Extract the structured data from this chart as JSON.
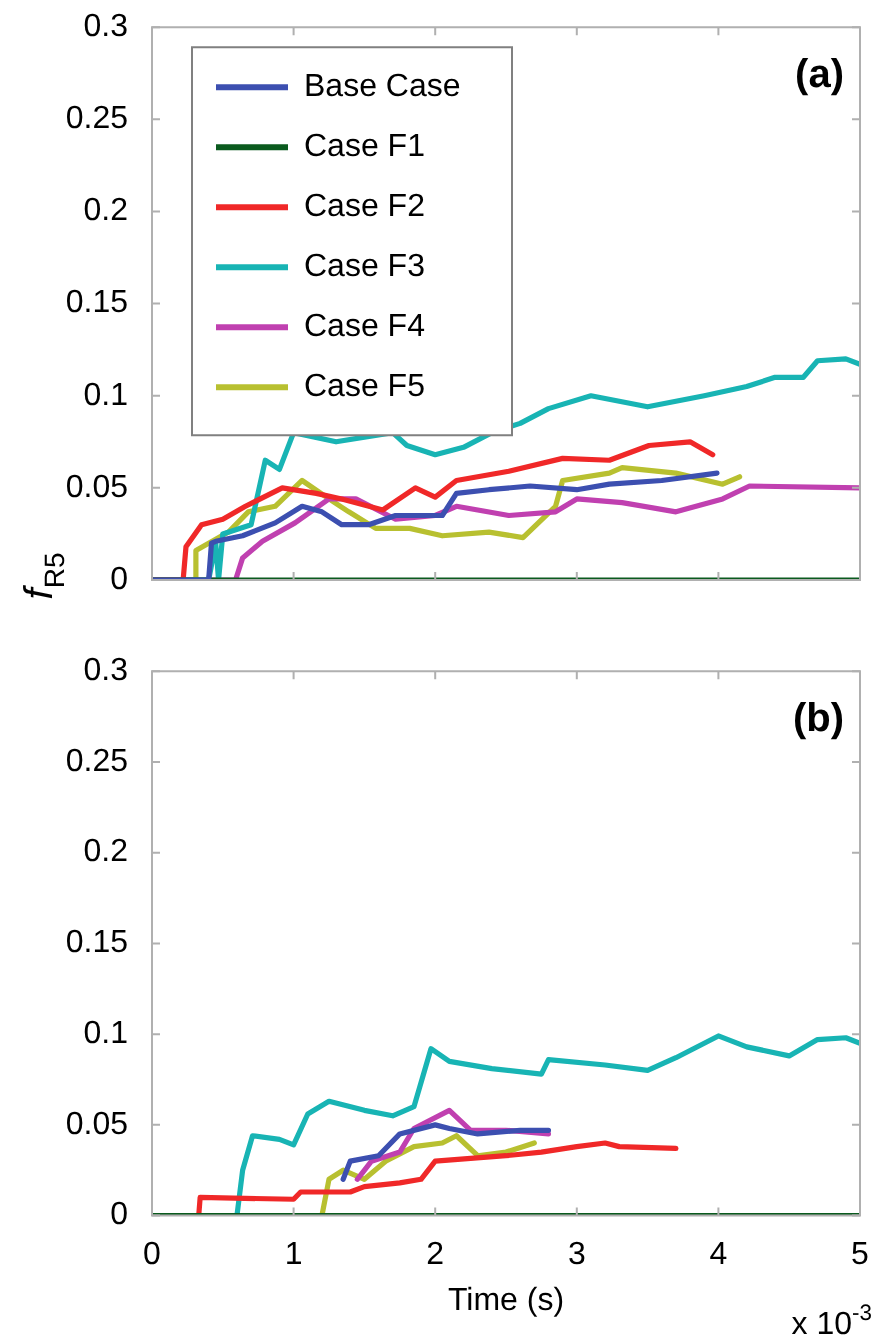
{
  "chart_data": [
    {
      "type": "line",
      "ylabel": "f$_{R5}$",
      "annotations": [
        "(a)"
      ],
      "xlim": [
        0,
        5
      ],
      "xticks": [
        0,
        1,
        2,
        3,
        4,
        5
      ],
      "ylim": [
        0,
        0.3
      ],
      "yticks": [
        0,
        0.05,
        0.1,
        0.15,
        0.2,
        0.25,
        0.3
      ],
      "tick_labels": "y",
      "grid": false,
      "legend": "top left",
      "marker": "none",
      "line_style": "solid",
      "series": [
        {
          "name": "Base Case",
          "color": "#3c4fb0",
          "x": [
            0,
            0.4,
            0.42,
            0.45,
            0.64,
            0.87,
            1.06,
            1.2,
            1.34,
            1.53,
            1.72,
            2.05,
            2.15,
            2.38,
            2.67,
            3.0,
            3.23,
            3.6,
            3.99
          ],
          "values": [
            0,
            0,
            0.02,
            0.021,
            0.024,
            0.031,
            0.04,
            0.037,
            0.03,
            0.03,
            0.035,
            0.035,
            0.047,
            0.049,
            0.051,
            0.049,
            0.052,
            0.054,
            0.058
          ]
        },
        {
          "name": "Case F1",
          "color": "#0a5a1e",
          "x": [
            0,
            5
          ],
          "values": [
            0,
            0
          ]
        },
        {
          "name": "Case F2",
          "color": "#f02828",
          "x": [
            0,
            0.22,
            0.24,
            0.35,
            0.5,
            0.66,
            0.92,
            1.16,
            1.34,
            1.63,
            1.86,
            2.0,
            2.15,
            2.52,
            2.9,
            3.23,
            3.51,
            3.8,
            3.96
          ],
          "values": [
            0,
            0,
            0.018,
            0.03,
            0.033,
            0.04,
            0.05,
            0.047,
            0.044,
            0.038,
            0.05,
            0.045,
            0.054,
            0.059,
            0.066,
            0.065,
            0.073,
            0.075,
            0.068
          ]
        },
        {
          "name": "Case F3",
          "color": "#18b4b4",
          "x": [
            0,
            0.4,
            0.45,
            0.47,
            0.5,
            0.7,
            0.8,
            0.9,
            1.0,
            1.3,
            1.7,
            1.8,
            2.0,
            2.2,
            2.4,
            2.6,
            2.8,
            3.1,
            3.5,
            3.9,
            4.2,
            4.4,
            4.6,
            4.7,
            4.9,
            5.0
          ],
          "values": [
            0,
            0,
            0.02,
            0,
            0.025,
            0.03,
            0.065,
            0.06,
            0.08,
            0.075,
            0.08,
            0.073,
            0.068,
            0.072,
            0.08,
            0.085,
            0.093,
            0.1,
            0.094,
            0.1,
            0.105,
            0.11,
            0.11,
            0.119,
            0.12,
            0.117
          ]
        },
        {
          "name": "Case F4",
          "color": "#c040b0",
          "x": [
            0,
            0.59,
            0.64,
            0.78,
            1.01,
            1.25,
            1.44,
            1.72,
            2.0,
            2.15,
            2.52,
            2.85,
            3.0,
            3.32,
            3.7,
            4.03,
            4.22,
            5.0
          ],
          "values": [
            0,
            0,
            0.012,
            0.021,
            0.031,
            0.044,
            0.044,
            0.033,
            0.035,
            0.04,
            0.035,
            0.037,
            0.044,
            0.042,
            0.037,
            0.044,
            0.051,
            0.05
          ]
        },
        {
          "name": "Case F5",
          "color": "#b8c030",
          "x": [
            0,
            0.3,
            0.31,
            0.54,
            0.68,
            0.87,
            1.06,
            1.25,
            1.39,
            1.58,
            1.82,
            2.05,
            2.38,
            2.62,
            2.85,
            2.9,
            3.23,
            3.32,
            3.7,
            4.03,
            4.15
          ],
          "values": [
            0,
            0,
            0.016,
            0.026,
            0.037,
            0.04,
            0.054,
            0.044,
            0.037,
            0.028,
            0.028,
            0.024,
            0.026,
            0.023,
            0.04,
            0.054,
            0.058,
            0.061,
            0.058,
            0.052,
            0.056
          ]
        }
      ]
    },
    {
      "type": "line",
      "xlabel": "Time (s)",
      "annotations": [
        "(b)",
        "x 10$^{-3}$"
      ],
      "xlim": [
        0,
        5
      ],
      "xticks": [
        0,
        1,
        2,
        3,
        4,
        5
      ],
      "ylim": [
        0,
        0.3
      ],
      "yticks": [
        0,
        0.05,
        0.1,
        0.15,
        0.2,
        0.25,
        0.3
      ],
      "grid": false,
      "marker": "none",
      "line_style": "solid",
      "series": [
        {
          "color": "#3c4fb0",
          "x": [
            1.35,
            1.4,
            1.6,
            1.75,
            2.0,
            2.1,
            2.3,
            2.6,
            2.8
          ],
          "values": [
            0.02,
            0.03,
            0.033,
            0.045,
            0.05,
            0.048,
            0.045,
            0.047,
            0.047
          ]
        },
        {
          "color": "#0a5a1e",
          "x": [
            0,
            5
          ],
          "values": [
            0,
            0
          ]
        },
        {
          "color": "#f02828",
          "x": [
            0,
            0.33,
            0.34,
            1.0,
            1.05,
            1.4,
            1.5,
            1.75,
            1.9,
            2.0,
            2.5,
            2.75,
            3.0,
            3.2,
            3.3,
            3.7
          ],
          "values": [
            0,
            0,
            0.01,
            0.009,
            0.013,
            0.013,
            0.016,
            0.018,
            0.02,
            0.03,
            0.033,
            0.035,
            0.038,
            0.04,
            0.038,
            0.037
          ]
        },
        {
          "color": "#18b4b4",
          "x": [
            0,
            0.6,
            0.64,
            0.71,
            0.9,
            1.0,
            1.1,
            1.25,
            1.5,
            1.7,
            1.85,
            1.97,
            2.1,
            2.4,
            2.75,
            2.8,
            3.2,
            3.5,
            3.7,
            4.0,
            4.2,
            4.5,
            4.7,
            4.9,
            5.0
          ],
          "values": [
            0,
            0,
            0.025,
            0.044,
            0.042,
            0.039,
            0.056,
            0.063,
            0.058,
            0.055,
            0.06,
            0.092,
            0.085,
            0.081,
            0.078,
            0.086,
            0.083,
            0.08,
            0.087,
            0.099,
            0.093,
            0.088,
            0.097,
            0.098,
            0.095
          ]
        },
        {
          "color": "#c040b0",
          "x": [
            1.45,
            1.55,
            1.75,
            1.85,
            2.1,
            2.25,
            2.5,
            2.8
          ],
          "values": [
            0.02,
            0.03,
            0.035,
            0.048,
            0.058,
            0.047,
            0.047,
            0.045
          ]
        },
        {
          "color": "#b8c030",
          "x": [
            0,
            1.2,
            1.25,
            1.35,
            1.5,
            1.65,
            1.85,
            2.05,
            2.15,
            2.3,
            2.5,
            2.7
          ],
          "values": [
            0,
            0,
            0.02,
            0.025,
            0.02,
            0.03,
            0.038,
            0.04,
            0.044,
            0.033,
            0.035,
            0.04
          ]
        }
      ]
    }
  ]
}
